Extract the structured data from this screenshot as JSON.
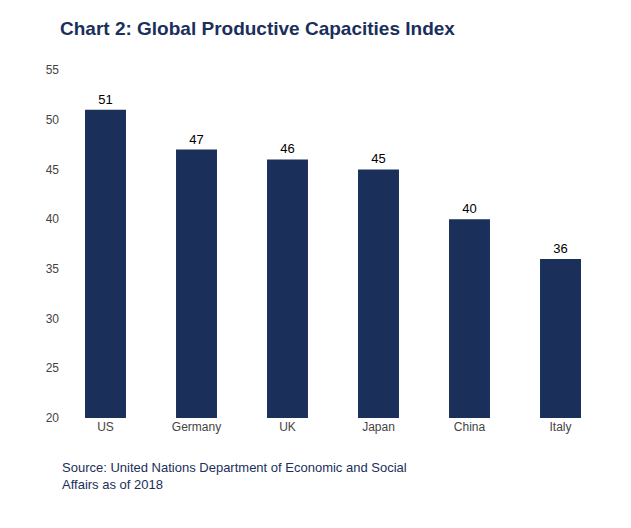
{
  "chart_data": {
    "type": "bar",
    "title": "Chart 2: Global Productive Capacities Index",
    "categories": [
      "US",
      "Germany",
      "UK",
      "Japan",
      "China",
      "Italy"
    ],
    "values": [
      51,
      47,
      46,
      45,
      40,
      36
    ],
    "color": "#1a2f5a",
    "ylim": [
      20,
      55
    ],
    "yticks": [
      20,
      25,
      30,
      35,
      40,
      45,
      50,
      55
    ],
    "grid": false,
    "data_labels": true,
    "annotations": [
      "Source: United Nations Department of Economic and Social\nAffairs as of 2018"
    ]
  }
}
